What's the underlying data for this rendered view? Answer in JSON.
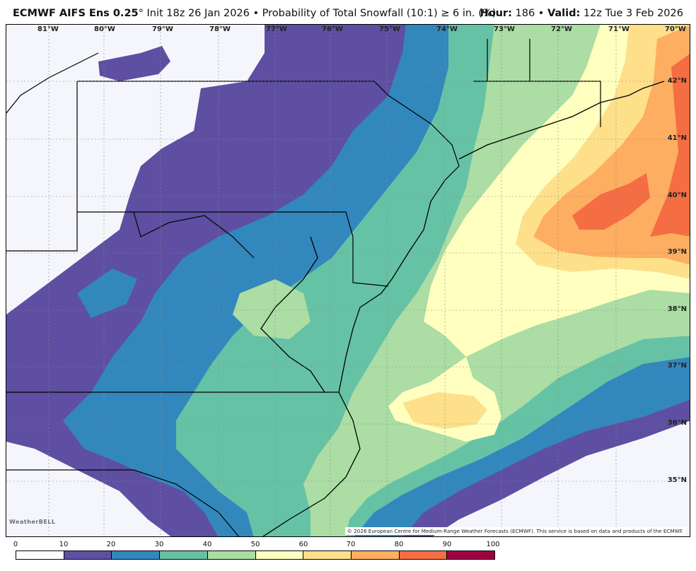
{
  "header": {
    "model": "ECMWF AIFS Ens 0.25",
    "degree": "°",
    "init": " Init 18z 26 Jan 2026",
    "bullet": " • ",
    "product": "Probability of Total Snowfall (10:1) ≥ 6 in. (%)",
    "hour_label": "Hour:",
    "hour_value": " 186",
    "valid_label": "Valid:",
    "valid_value": " 12z Tue 3 Feb 2026"
  },
  "map": {
    "longitude_labels": [
      "81°W",
      "80°W",
      "79°W",
      "78°W",
      "77°W",
      "76°W",
      "75°W",
      "74°W",
      "73°W",
      "72°W",
      "71°W",
      "70°W"
    ],
    "latitude_labels": [
      "42°N",
      "41°N",
      "40°N",
      "39°N",
      "38°N",
      "37°N",
      "36°N",
      "35°N"
    ],
    "copyright": "© 2026 European Centre for Medium-Range Weather Forecasts (ECMWF). This service is based on data and products of the ECMWF.",
    "logo": "WeatherBELL"
  },
  "colorbar": {
    "ticks": [
      "0",
      "10",
      "20",
      "30",
      "40",
      "50",
      "60",
      "70",
      "80",
      "90",
      "100"
    ],
    "colors": [
      "#ffffff",
      "#5e4fa2",
      "#3288bd",
      "#66c2a5",
      "#abdda4",
      "#ffffbf",
      "#fee08b",
      "#fdae61",
      "#f46d43",
      "#9e0142"
    ]
  }
}
